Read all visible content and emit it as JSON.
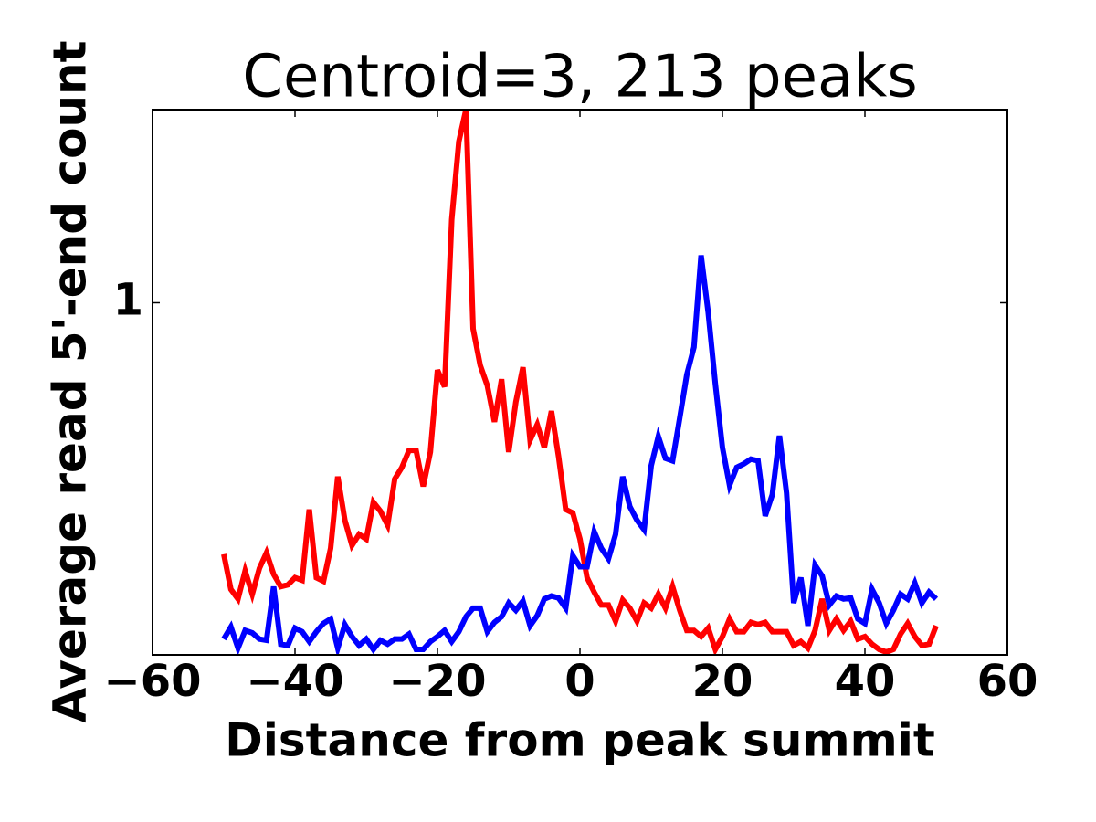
{
  "chart_data": {
    "type": "line",
    "title": "Centroid=3, 213 peaks",
    "xlabel": "Distance from peak summit",
    "ylabel": "Average read 5'-end count",
    "x": [
      -50,
      -49,
      -48,
      -47,
      -46,
      -45,
      -44,
      -43,
      -42,
      -41,
      -40,
      -39,
      -38,
      -37,
      -36,
      -35,
      -34,
      -33,
      -32,
      -31,
      -30,
      -29,
      -28,
      -27,
      -26,
      -25,
      -24,
      -23,
      -22,
      -21,
      -20,
      -19,
      -18,
      -17,
      -16,
      -15,
      -14,
      -13,
      -12,
      -11,
      -10,
      -9,
      -8,
      -7,
      -6,
      -5,
      -4,
      -3,
      -2,
      -1,
      0,
      1,
      2,
      3,
      4,
      5,
      6,
      7,
      8,
      9,
      10,
      11,
      12,
      13,
      14,
      15,
      16,
      17,
      18,
      19,
      20,
      21,
      22,
      23,
      24,
      25,
      26,
      27,
      28,
      29,
      30,
      31,
      32,
      33,
      34,
      35,
      36,
      37,
      38,
      39,
      40,
      41,
      42,
      43,
      44,
      45,
      46,
      47,
      48,
      49,
      50
    ],
    "series": [
      {
        "color": "#ff0000",
        "values": [
          0.22,
          0.178,
          0.168,
          0.199,
          0.173,
          0.202,
          0.222,
          0.195,
          0.181,
          0.183,
          0.191,
          0.188,
          0.288,
          0.191,
          0.187,
          0.228,
          0.351,
          0.27,
          0.232,
          0.248,
          0.241,
          0.301,
          0.285,
          0.262,
          0.346,
          0.371,
          0.411,
          0.411,
          0.331,
          0.407,
          0.667,
          0.603,
          1.65,
          2.64,
          3.2,
          0.855,
          0.686,
          0.607,
          0.488,
          0.631,
          0.407,
          0.55,
          0.678,
          0.437,
          0.48,
          0.418,
          0.521,
          0.396,
          0.288,
          0.282,
          0.241,
          0.191,
          0.175,
          0.162,
          0.162,
          0.147,
          0.167,
          0.159,
          0.147,
          0.164,
          0.159,
          0.173,
          0.159,
          0.181,
          0.157,
          0.139,
          0.139,
          0.134,
          0.141,
          0.124,
          0.134,
          0.149,
          0.138,
          0.138,
          0.146,
          0.144,
          0.146,
          0.138,
          0.138,
          0.138,
          0.127,
          0.13,
          0.125,
          0.139,
          0.168,
          0.139,
          0.149,
          0.139,
          0.147,
          0.132,
          0.134,
          0.128,
          0.124,
          0.122,
          0.124,
          0.136,
          0.145,
          0.134,
          0.127,
          0.128,
          0.143
        ]
      },
      {
        "color": "#0000ff",
        "values": [
          0.132,
          0.142,
          0.125,
          0.139,
          0.137,
          0.132,
          0.131,
          0.181,
          0.128,
          0.127,
          0.141,
          0.138,
          0.13,
          0.138,
          0.145,
          0.149,
          0.125,
          0.144,
          0.134,
          0.127,
          0.132,
          0.124,
          0.131,
          0.128,
          0.132,
          0.132,
          0.136,
          0.124,
          0.124,
          0.13,
          0.134,
          0.139,
          0.13,
          0.138,
          0.151,
          0.159,
          0.159,
          0.138,
          0.146,
          0.151,
          0.164,
          0.157,
          0.166,
          0.143,
          0.152,
          0.168,
          0.171,
          0.169,
          0.159,
          0.218,
          0.204,
          0.204,
          0.252,
          0.228,
          0.214,
          0.248,
          0.351,
          0.293,
          0.27,
          0.255,
          0.375,
          0.447,
          0.392,
          0.386,
          0.499,
          0.649,
          0.765,
          1.33,
          0.944,
          0.614,
          0.418,
          0.333,
          0.371,
          0.379,
          0.39,
          0.386,
          0.277,
          0.315,
          0.449,
          0.318,
          0.164,
          0.191,
          0.143,
          0.206,
          0.193,
          0.162,
          0.171,
          0.168,
          0.169,
          0.149,
          0.145,
          0.178,
          0.164,
          0.145,
          0.157,
          0.173,
          0.168,
          0.185,
          0.164,
          0.175,
          0.168
        ]
      }
    ],
    "xlim": [
      -60,
      60
    ],
    "xticks": [
      {
        "value": -60,
        "label": "−60"
      },
      {
        "value": -40,
        "label": "−40"
      },
      {
        "value": -20,
        "label": "−20"
      },
      0,
      20,
      40,
      60
    ],
    "ylim": [
      0.12,
      3.2
    ],
    "yticks": [
      1
    ],
    "ylog": true,
    "grid": false
  }
}
